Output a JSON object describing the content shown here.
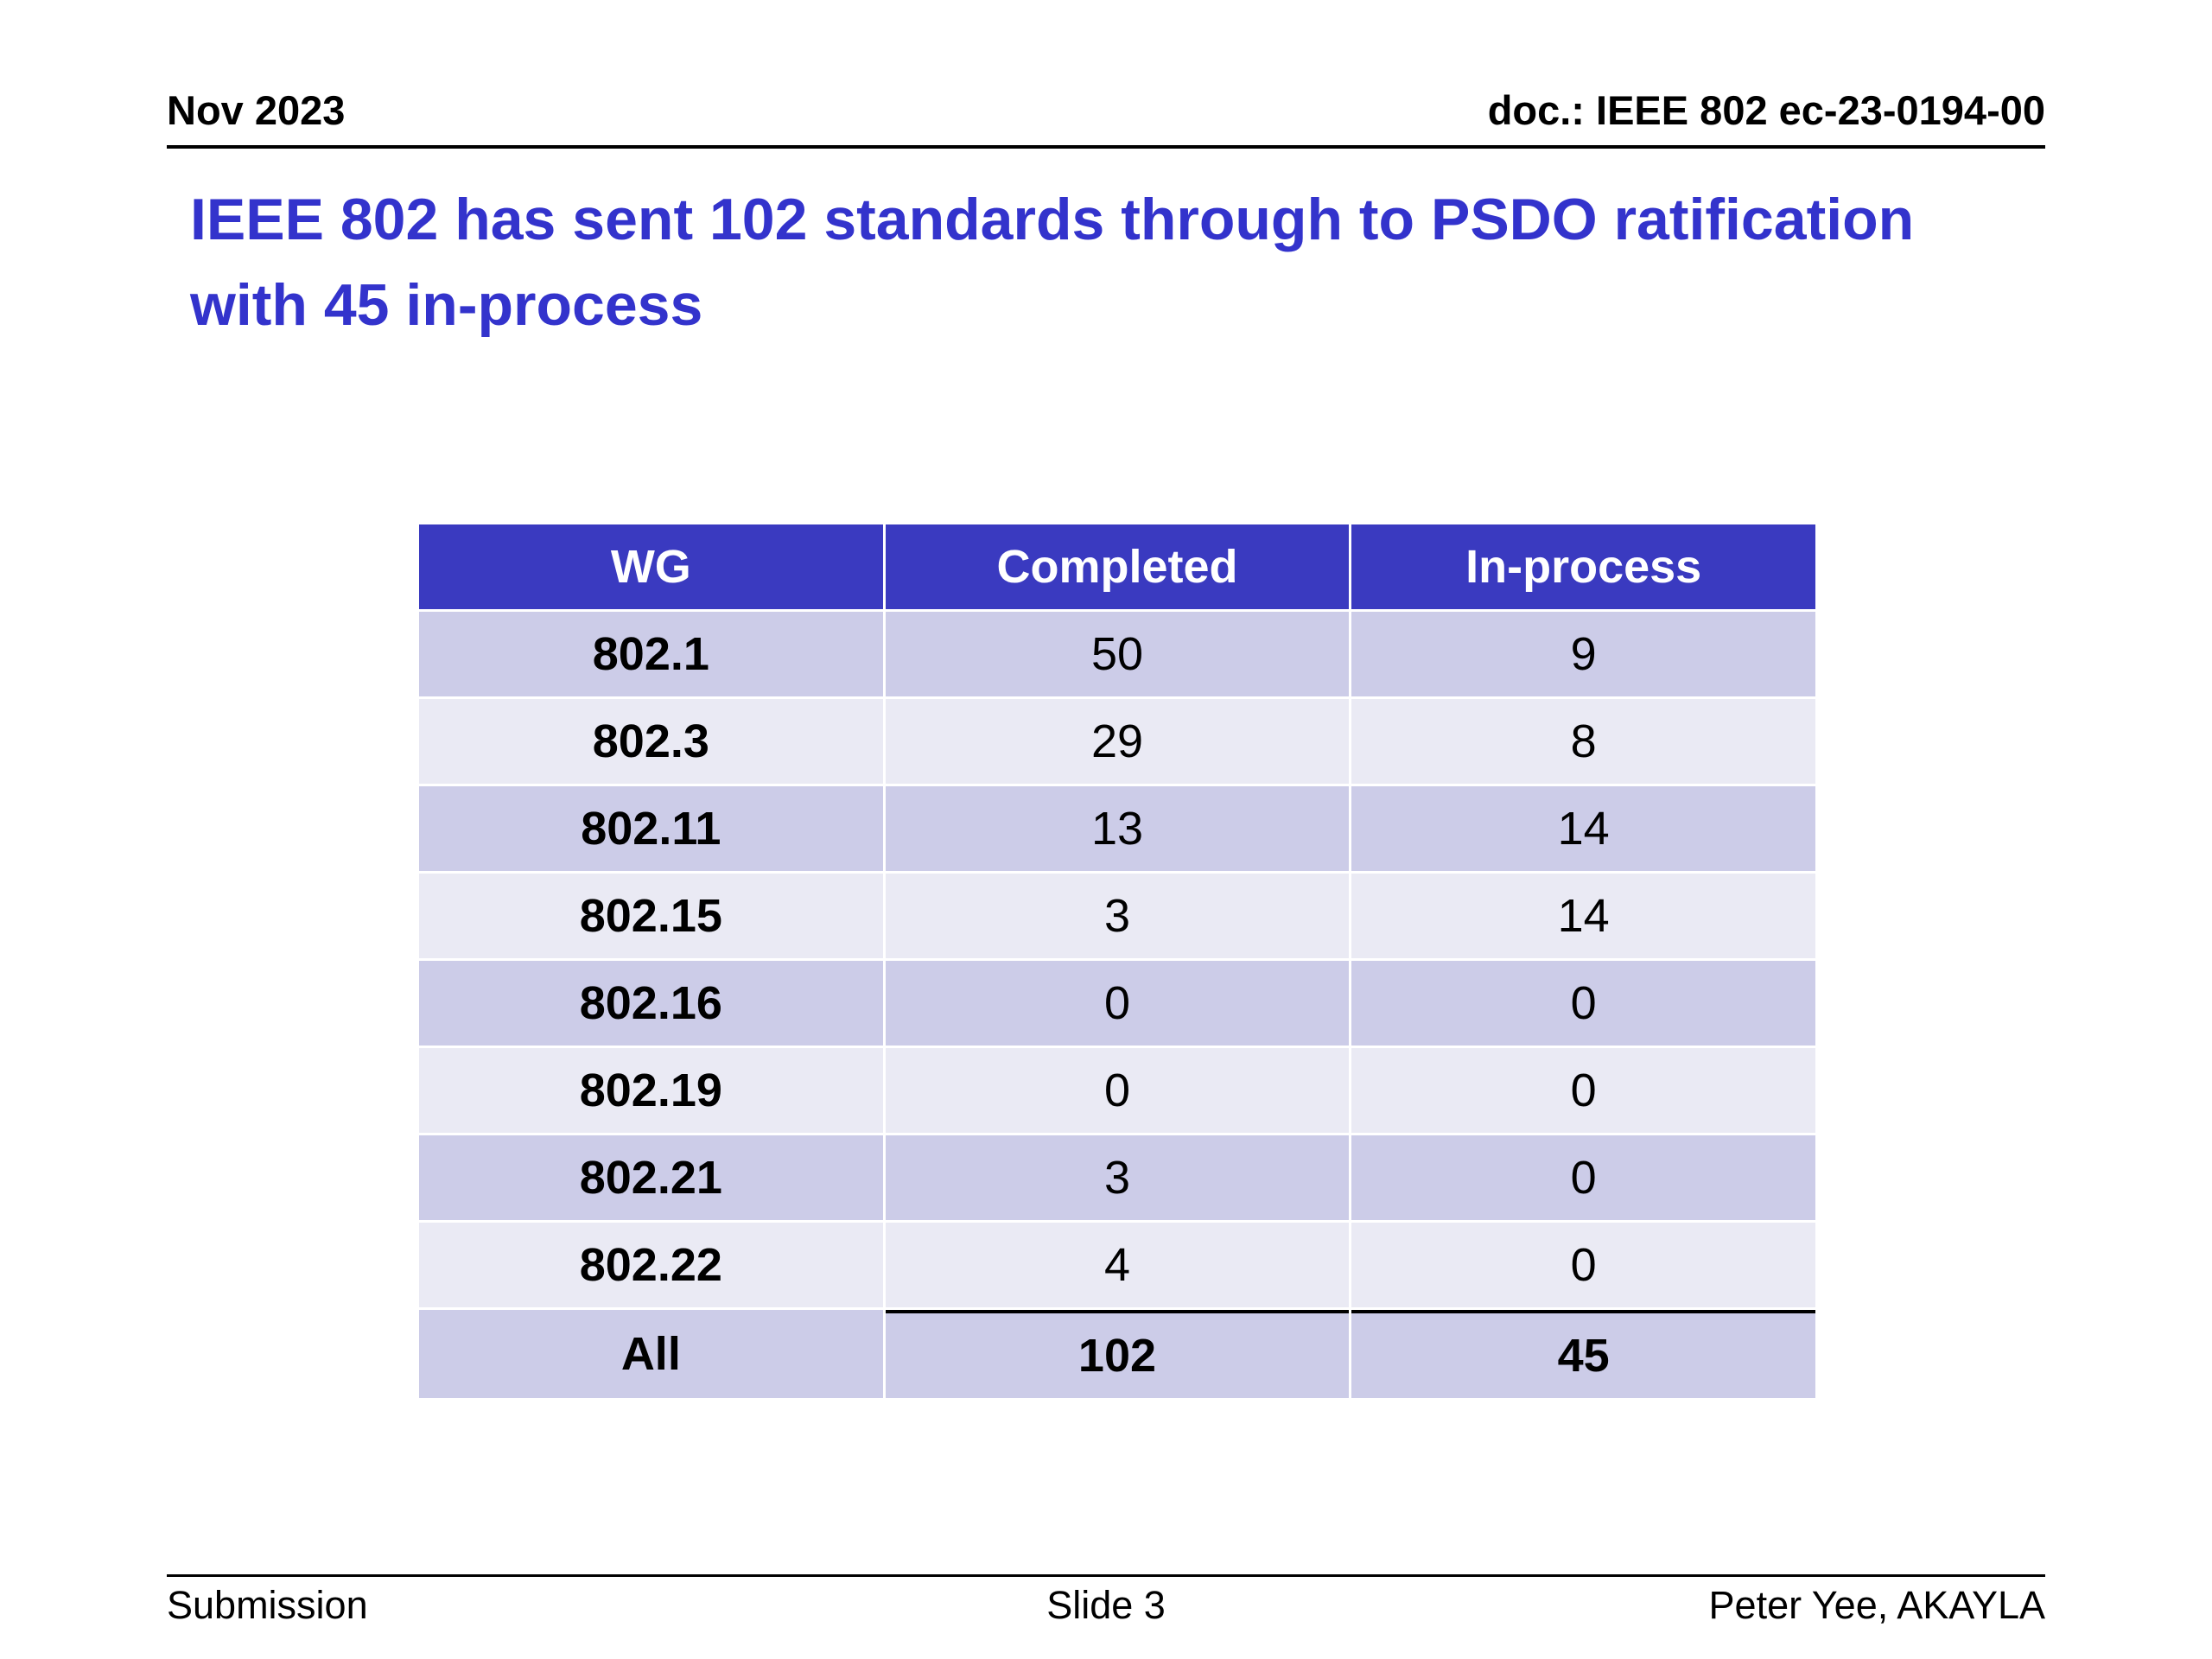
{
  "header": {
    "date": "Nov 2023",
    "doc": "doc.: IEEE 802 ec-23-0194-00"
  },
  "title": "IEEE 802 has sent 102 standards through to PSDO ratification with 45 in-process",
  "table": {
    "columns": [
      "WG",
      "Completed",
      "In-process"
    ],
    "rows": [
      [
        "802.1",
        "50",
        "9"
      ],
      [
        "802.3",
        "29",
        "8"
      ],
      [
        "802.11",
        "13",
        "14"
      ],
      [
        "802.15",
        "3",
        "14"
      ],
      [
        "802.16",
        "0",
        "0"
      ],
      [
        "802.19",
        "0",
        "0"
      ],
      [
        "802.21",
        "3",
        "0"
      ],
      [
        "802.22",
        "4",
        "0"
      ]
    ],
    "total": [
      "All",
      "102",
      "45"
    ]
  },
  "footer": {
    "left": "Submission",
    "center": "Slide 3",
    "right": "Peter Yee, AKAYLA"
  },
  "colors": {
    "title_blue": "#3333cc",
    "table_header_bg": "#3a3ac0",
    "row_dark": "#cccce8",
    "row_light": "#eaeaf4"
  }
}
